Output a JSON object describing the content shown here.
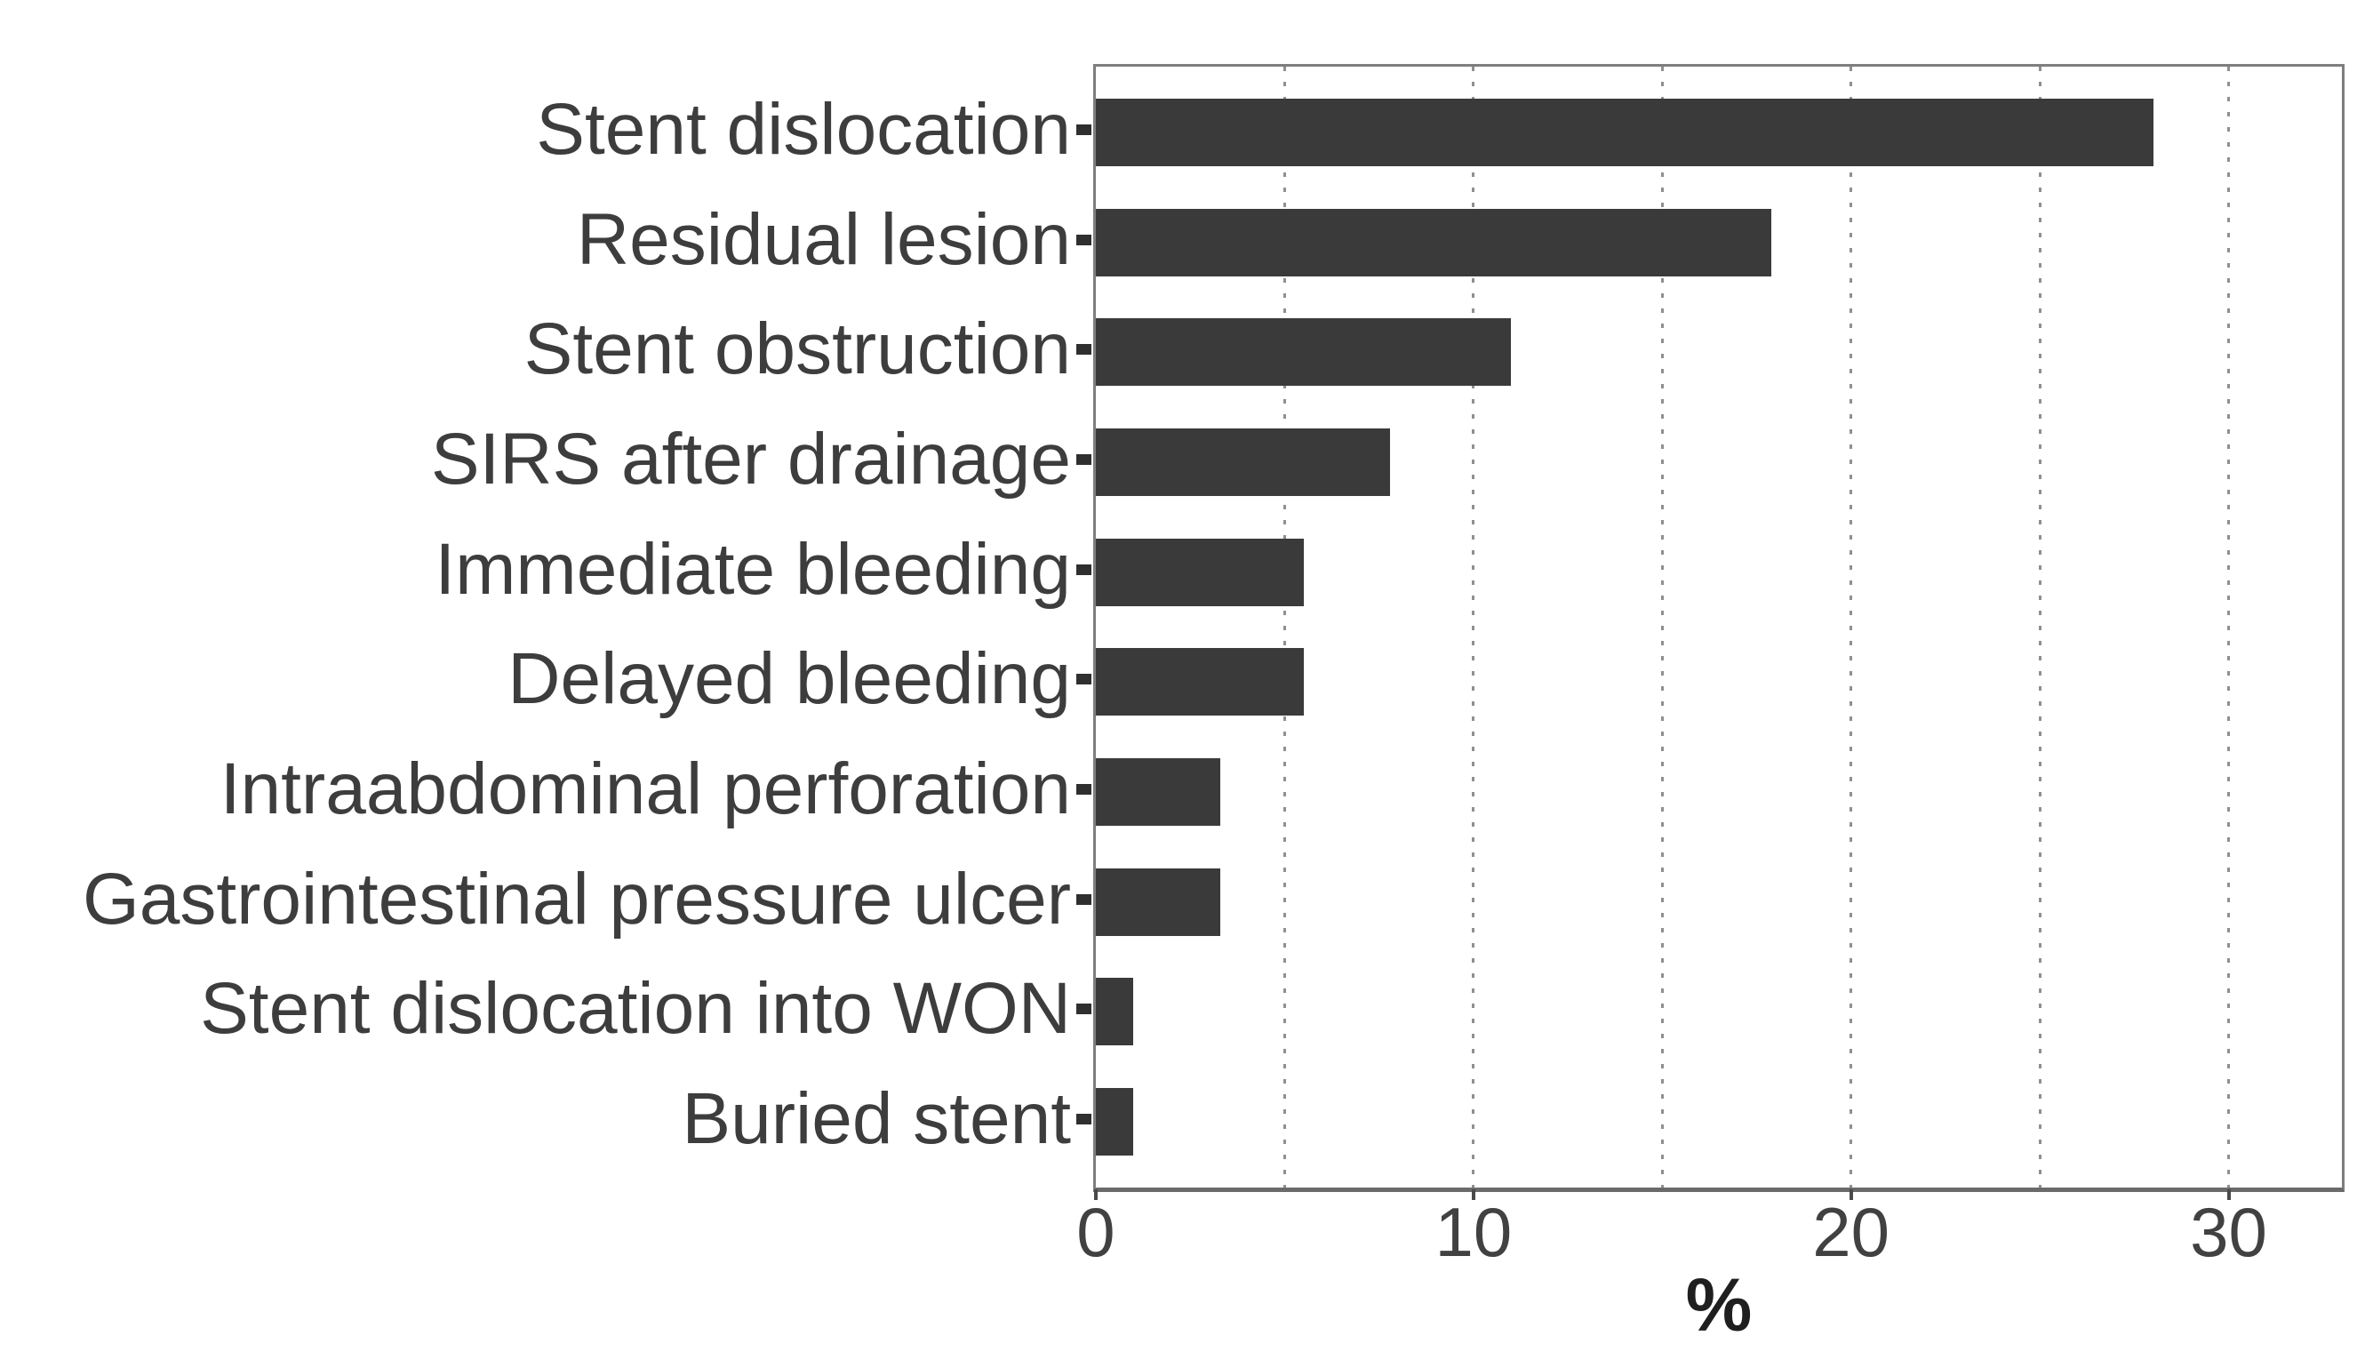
{
  "chart_data": {
    "type": "bar",
    "orientation": "horizontal",
    "categories": [
      "Stent dislocation",
      "Residual lesion",
      "Stent obstruction",
      "SIRS after drainage",
      "Immediate bleeding",
      "Delayed bleeding",
      "Intraabdominal perforation",
      "Gastrointestinal pressure ulcer",
      "Stent dislocation into WON",
      "Buried stent"
    ],
    "values": [
      28,
      17.9,
      11,
      7.8,
      5.5,
      5.5,
      3.3,
      3.3,
      1,
      1
    ],
    "unit": "%",
    "title": "",
    "xlabel": "%",
    "ylabel": "",
    "x_ticks": [
      0,
      10,
      20,
      30
    ],
    "gridlines_x": [
      5,
      10,
      15,
      20,
      25,
      30
    ],
    "xlim": [
      0,
      33
    ],
    "grid_on": true,
    "legend_position": "none",
    "bar_color": "#3a3a3a",
    "grid_color": "#8f8f8f",
    "panel_border_color": "#7e7e7e",
    "text_color": "#3d3d3d"
  }
}
